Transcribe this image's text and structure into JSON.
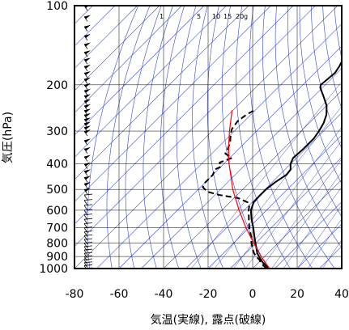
{
  "chart_data": {
    "type": "line",
    "chart_kind": "skew-T log-p thermodynamic diagram",
    "xlabel": "気温(実線), 露点(破線)",
    "ylabel": "気圧(hPa)",
    "x_range": [
      -80,
      40
    ],
    "y_range": [
      1000,
      100
    ],
    "y_scale": "log (inverted)",
    "x_ticks": [
      -80,
      -60,
      -40,
      -20,
      0,
      20,
      40
    ],
    "x_tick_labels": [
      "-80",
      "-60",
      "-40",
      "-20",
      "0",
      "20",
      "40"
    ],
    "y_ticks": [
      100,
      200,
      300,
      400,
      500,
      600,
      700,
      800,
      900,
      1000
    ],
    "y_tick_labels": [
      "100",
      "200",
      "300",
      "400",
      "500",
      "600",
      "700",
      "800",
      "900",
      "1000"
    ],
    "grid": true,
    "mixing_ratio_labels": [
      "1",
      "5",
      "10",
      "15",
      "20",
      "g"
    ],
    "colors": {
      "temperature": "#000000",
      "dewpoint": "#000000",
      "parcel": "#ff0000",
      "background_lines": "#3344cc",
      "grid": "#000000"
    },
    "series": [
      {
        "key": "temperature",
        "line_style": "solid",
        "points": [
          [
            1000,
            7.6
          ],
          [
            980,
            5.2
          ],
          [
            950,
            2.0
          ],
          [
            925,
            -0.3
          ],
          [
            900,
            -2.5
          ],
          [
            875,
            -4.8
          ],
          [
            850,
            -6.5
          ],
          [
            800,
            -10.2
          ],
          [
            750,
            -14.0
          ],
          [
            700,
            -18.0
          ],
          [
            650,
            -22.6
          ],
          [
            600,
            -27.0
          ],
          [
            560,
            -29.3
          ],
          [
            530,
            -29.6
          ],
          [
            500,
            -29.6
          ],
          [
            470,
            -28.7
          ],
          [
            440,
            -27.0
          ],
          [
            420,
            -27.5
          ],
          [
            400,
            -30.0
          ],
          [
            380,
            -31.5
          ],
          [
            350,
            -31.0
          ],
          [
            320,
            -31.0
          ],
          [
            300,
            -32.0
          ],
          [
            280,
            -33.5
          ],
          [
            260,
            -36.0
          ],
          [
            240,
            -40.0
          ],
          [
            220,
            -46.0
          ],
          [
            205,
            -51.0
          ],
          [
            200,
            -52.0
          ],
          [
            190,
            -51.5
          ],
          [
            180,
            -51.0
          ],
          [
            170,
            -52.0
          ],
          [
            160,
            -53.5
          ],
          [
            150,
            -56.0
          ],
          [
            140,
            -59.0
          ],
          [
            130,
            -61.0
          ],
          [
            120,
            -60.0
          ],
          [
            110,
            -60.5
          ],
          [
            100,
            -61.0
          ]
        ]
      },
      {
        "key": "dewpoint",
        "line_style": "dashed",
        "points": [
          [
            1000,
            6.2
          ],
          [
            975,
            3.6
          ],
          [
            950,
            1.0
          ],
          [
            925,
            -1.0
          ],
          [
            900,
            -3.8
          ],
          [
            875,
            -6.2
          ],
          [
            850,
            -8.2
          ],
          [
            800,
            -12.0
          ],
          [
            750,
            -15.5
          ],
          [
            700,
            -19.8
          ],
          [
            650,
            -23.8
          ],
          [
            600,
            -28.0
          ],
          [
            580,
            -29.5
          ],
          [
            560,
            -32.0
          ],
          [
            540,
            -38.0
          ],
          [
            525,
            -48.0
          ],
          [
            510,
            -55.0
          ],
          [
            490,
            -59.0
          ],
          [
            470,
            -60.0
          ],
          [
            440,
            -60.0
          ],
          [
            420,
            -61.5
          ],
          [
            410,
            -60.0
          ],
          [
            395,
            -62.5
          ],
          [
            380,
            -59.0
          ],
          [
            365,
            -64.0
          ],
          [
            350,
            -65.0
          ],
          [
            330,
            -67.0
          ],
          [
            310,
            -70.0
          ],
          [
            295,
            -72.0
          ],
          [
            275,
            -73.0
          ],
          [
            260,
            -72.0
          ],
          [
            250,
            -70.5
          ]
        ]
      },
      {
        "key": "parcel",
        "line_style": "solid",
        "points": [
          [
            1000,
            7.6
          ],
          [
            900,
            -1.6
          ],
          [
            800,
            -11.0
          ],
          [
            700,
            -21.3
          ],
          [
            600,
            -32.3
          ],
          [
            500,
            -44.5
          ],
          [
            400,
            -57.6
          ],
          [
            350,
            -64.7
          ],
          [
            300,
            -72.2
          ],
          [
            250,
            -80.4
          ]
        ]
      }
    ]
  }
}
